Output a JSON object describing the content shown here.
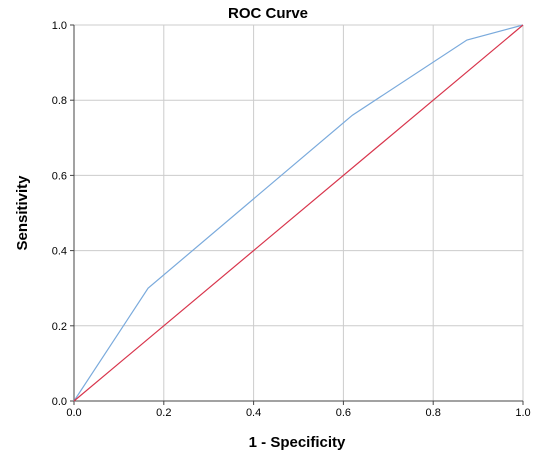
{
  "chart_data": {
    "type": "line",
    "title": "ROC Curve",
    "xlabel": "1 - Specificity",
    "ylabel": "Sensitivity",
    "xlim": [
      0,
      1
    ],
    "ylim": [
      0,
      1
    ],
    "xticks": [
      "0.0",
      "0.2",
      "0.4",
      "0.6",
      "0.8",
      "1.0"
    ],
    "yticks": [
      "0.0",
      "0.2",
      "0.4",
      "0.6",
      "0.8",
      "1.0"
    ],
    "grid": true,
    "legend": "none",
    "series": [
      {
        "color": "#7aaadc",
        "x": [
          0.0,
          0.165,
          0.62,
          0.875,
          1.0
        ],
        "y": [
          0.0,
          0.3,
          0.76,
          0.96,
          1.0
        ]
      },
      {
        "color": "#d8354c",
        "x": [
          0.0,
          1.0
        ],
        "y": [
          0.0,
          1.0
        ]
      }
    ],
    "colors": {
      "grid": "#cccccc",
      "axis": "#444444",
      "background": "#ffffff"
    }
  }
}
